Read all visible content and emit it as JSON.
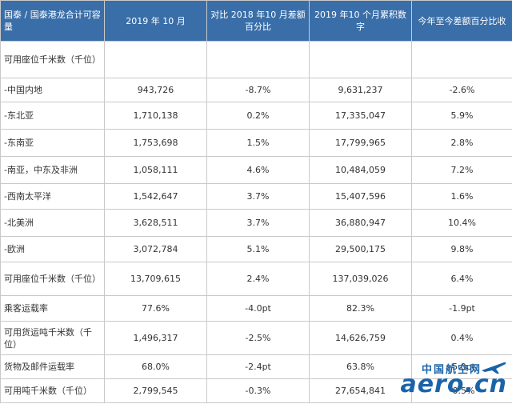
{
  "table": {
    "headers": [
      "国泰 / 国泰港龙合计可容量",
      "2019 年 10 月",
      "对比 2018 年10 月差额百分比",
      "2019 年10 个月累积数字",
      "今年至今差额百分比收"
    ],
    "rows": [
      {
        "label": "可用座位千米数（千位）",
        "v1": "",
        "v2": "",
        "v3": "",
        "v4": ""
      },
      {
        "label": "-中国内地",
        "v1": "943,726",
        "v2": "-8.7%",
        "v3": "9,631,237",
        "v4": "-2.6%"
      },
      {
        "label": "-东北亚",
        "v1": "1,710,138",
        "v2": "0.2%",
        "v3": "17,335,047",
        "v4": "5.9%"
      },
      {
        "label": "-东南亚",
        "v1": "1,753,698",
        "v2": "1.5%",
        "v3": "17,799,965",
        "v4": "2.8%"
      },
      {
        "label": "-南亚，中东及非洲",
        "v1": "1,058,111",
        "v2": "4.6%",
        "v3": "10,484,059",
        "v4": "7.2%"
      },
      {
        "label": "-西南太平洋",
        "v1": "1,542,647",
        "v2": "3.7%",
        "v3": "15,407,596",
        "v4": "1.6%"
      },
      {
        "label": "-北美洲",
        "v1": "3,628,511",
        "v2": "3.7%",
        "v3": "36,880,947",
        "v4": "10.4%"
      },
      {
        "label": "-欧洲",
        "v1": "3,072,784",
        "v2": "5.1%",
        "v3": "29,500,175",
        "v4": "9.8%"
      },
      {
        "label": "可用座位千米数（千位）",
        "v1": "13,709,615",
        "v2": "2.4%",
        "v3": "137,039,026",
        "v4": "6.4%"
      },
      {
        "label": "乘客运载率",
        "v1": "77.6%",
        "v2": "-4.0pt",
        "v3": "82.3%",
        "v4": "-1.9pt"
      },
      {
        "label": "可用货运吨千米数（千位）",
        "v1": "1,496,317",
        "v2": "-2.5%",
        "v3": "14,626,759",
        "v4": "0.4%"
      },
      {
        "label": "货物及邮件运载率",
        "v1": "68.0%",
        "v2": "-2.4pt",
        "v3": "63.8%",
        "v4": "-5.0pt"
      },
      {
        "label": "可用吨千米数（千位）",
        "v1": "2,799,545",
        "v2": "-0.3%",
        "v3": "27,654,841",
        "v4": "-0.5%"
      }
    ]
  },
  "watermark": {
    "cn": "中国航空网",
    "en": "aero.cn"
  },
  "colors": {
    "header_bg": "#3a6ea8",
    "header_text": "#ffffff",
    "border": "#c9c9c9",
    "watermark": "#1b63a8"
  }
}
